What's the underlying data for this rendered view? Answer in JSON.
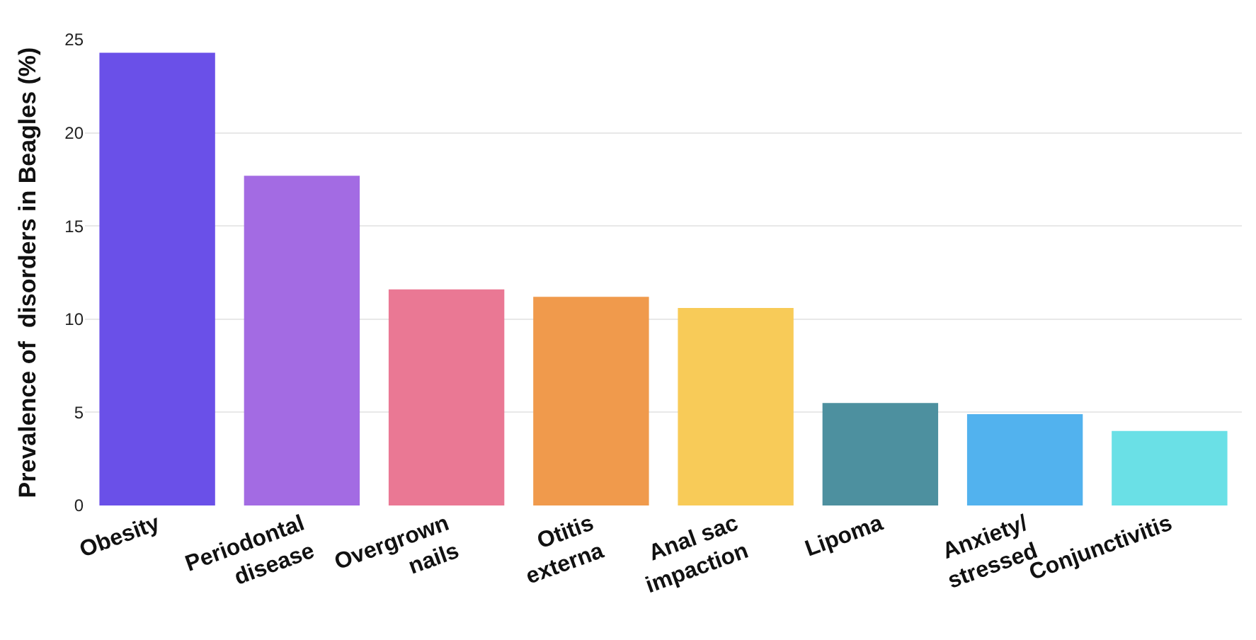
{
  "chart_data": {
    "type": "bar",
    "ylabel": "Prevalence of  disorders in Beagles (%)",
    "categories": [
      "Obesity",
      "Periodontal\ndisease",
      "Overgrown\nnails",
      "Otitis\nexterna",
      "Anal sac\nimpaction",
      "Lipoma",
      "Anxiety/\nstressed",
      "Conjunctivitis"
    ],
    "values": [
      24.3,
      17.7,
      11.6,
      11.2,
      10.6,
      5.5,
      4.9,
      4.0
    ],
    "colors": [
      "#6a50e8",
      "#a36be3",
      "#ea7894",
      "#f09a4c",
      "#f8cb58",
      "#4d909f",
      "#52b2ee",
      "#6ae0e6"
    ],
    "ylim": [
      0,
      25
    ],
    "yticks": [
      0,
      5,
      10,
      15,
      20,
      25
    ],
    "grid": "y"
  }
}
